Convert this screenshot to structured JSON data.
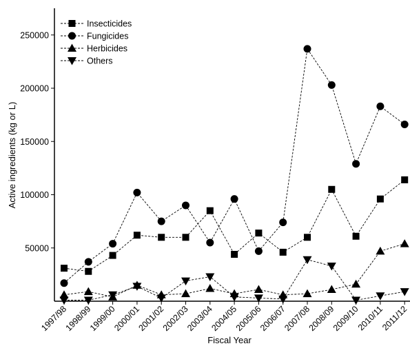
{
  "chart_data": {
    "type": "line",
    "title": "",
    "xlabel": "Fiscal Year",
    "ylabel": "Active ingredients (kg or L)",
    "ylim": [
      0,
      275000
    ],
    "yticks": [
      50000,
      100000,
      150000,
      200000,
      250000
    ],
    "categories": [
      "1997/98",
      "1998/99",
      "1999/00",
      "2000/01",
      "2001/02",
      "2002/03",
      "2003/04",
      "2004/05",
      "2005/06",
      "2006/07",
      "2007/08",
      "2008/09",
      "2009/10",
      "2010/11",
      "2011/12"
    ],
    "grid": false,
    "legend_position": "top-left",
    "line_style": "dashed",
    "color": "#000000",
    "series": [
      {
        "name": "Insecticides",
        "marker": "square",
        "values": [
          31000,
          28000,
          43000,
          62000,
          60000,
          60000,
          85000,
          44000,
          64000,
          46000,
          60000,
          105000,
          61000,
          96000,
          114000
        ]
      },
      {
        "name": "Fungicides",
        "marker": "circle",
        "values": [
          17000,
          37000,
          54000,
          102000,
          75000,
          90000,
          55000,
          96000,
          47000,
          74000,
          237000,
          203000,
          129000,
          183000,
          166000
        ]
      },
      {
        "name": "Herbicides",
        "marker": "triangle-up",
        "values": [
          6000,
          9000,
          4000,
          15000,
          6000,
          7000,
          12000,
          7000,
          11000,
          6000,
          7000,
          11000,
          16000,
          47000,
          54000
        ]
      },
      {
        "name": "Others",
        "marker": "triangle-down",
        "values": [
          1000,
          1000,
          6000,
          14000,
          3000,
          19000,
          23000,
          4000,
          3000,
          2000,
          39000,
          33000,
          1000,
          5000,
          9000
        ]
      }
    ]
  }
}
